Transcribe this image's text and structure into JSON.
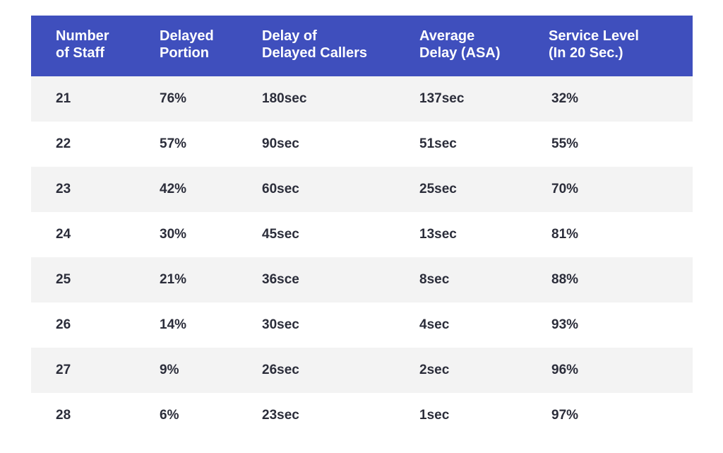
{
  "table": {
    "headers": [
      "Number\nof Staff",
      "Delayed\nPortion",
      "Delay of\nDelayed Callers",
      "Average\nDelay (ASA)",
      "Service Level\n(In 20 Sec.)"
    ],
    "rows": [
      [
        "21",
        "76%",
        "180sec",
        "137sec",
        "32%"
      ],
      [
        "22",
        "57%",
        "90sec",
        "51sec",
        "55%"
      ],
      [
        "23",
        "42%",
        "60sec",
        "25sec",
        "70%"
      ],
      [
        "24",
        "30%",
        "45sec",
        "13sec",
        "81%"
      ],
      [
        "25",
        "21%",
        "36sce",
        "8sec",
        "88%"
      ],
      [
        "26",
        "14%",
        "30sec",
        "4sec",
        "93%"
      ],
      [
        "27",
        "9%",
        "26sec",
        "2sec",
        "96%"
      ],
      [
        "28",
        "6%",
        "23sec",
        "1sec",
        "97%"
      ]
    ]
  },
  "colors": {
    "header_bg": "#3f4fbd",
    "header_text": "#ffffff",
    "shaded_row": "#f3f3f3",
    "body_text": "#2b2d3a"
  }
}
